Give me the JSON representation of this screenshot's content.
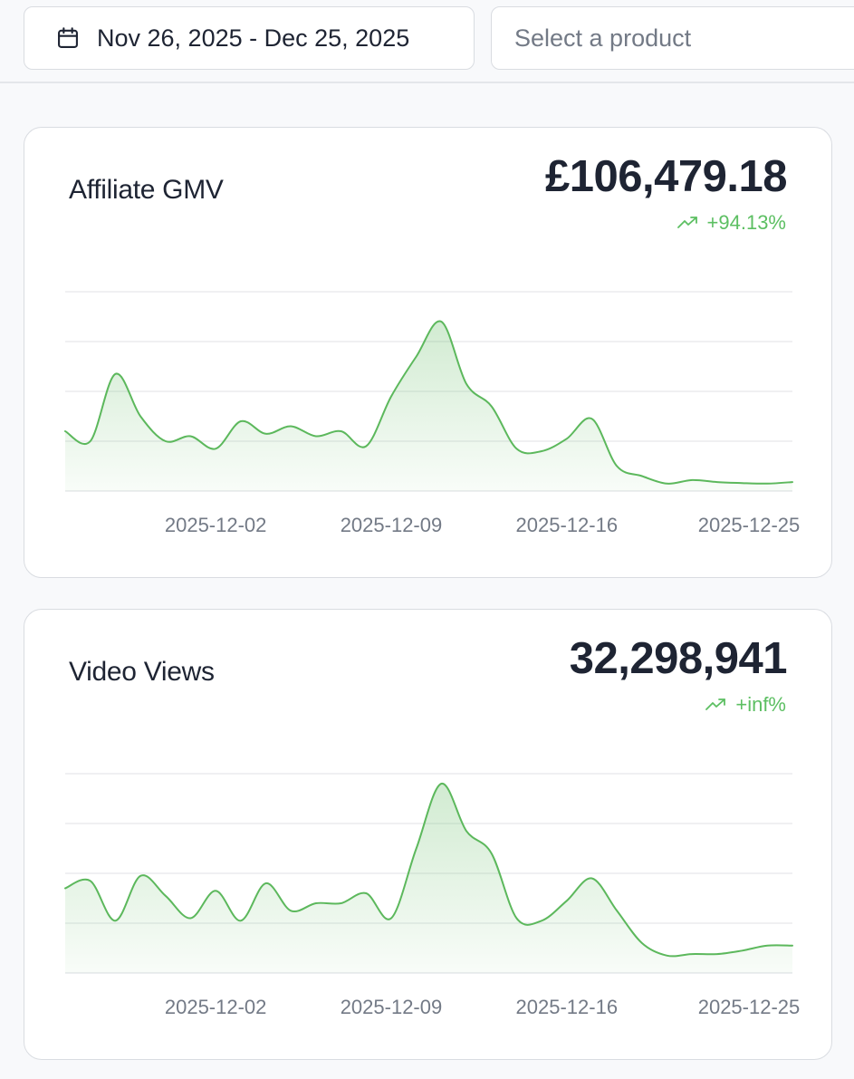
{
  "toolbar": {
    "date_range": "Nov 26, 2025 - Dec 25, 2025",
    "product_placeholder": "Select a product"
  },
  "cards": [
    {
      "title": "Affiliate GMV",
      "value": "£106,479.18",
      "change": "+94.13%"
    },
    {
      "title": "Video Views",
      "value": "32,298,941",
      "change": "+inf%"
    }
  ],
  "colors": {
    "accent_green": "#5cbf62",
    "line_green": "#5cb85c",
    "gridline": "#e6e8eb"
  },
  "chart_data": [
    {
      "type": "area",
      "title": "Affiliate GMV",
      "x_ticks": [
        "2025-12-02",
        "2025-12-09",
        "2025-12-16",
        "2025-12-25"
      ],
      "x_tick_days": [
        6,
        13,
        20,
        29
      ],
      "x_range": [
        0,
        29
      ],
      "ylim": [
        0,
        4
      ],
      "grid": true,
      "x": [
        0,
        1,
        2,
        3,
        4,
        5,
        6,
        7,
        8,
        9,
        10,
        11,
        12,
        13,
        14,
        15,
        16,
        17,
        18,
        19,
        20,
        21,
        22,
        23,
        24,
        25,
        26,
        27,
        28,
        29
      ],
      "values": [
        1.2,
        1.0,
        2.35,
        1.5,
        1.0,
        1.1,
        0.85,
        1.4,
        1.15,
        1.3,
        1.1,
        1.2,
        0.9,
        1.9,
        2.7,
        3.4,
        2.15,
        1.7,
        0.85,
        0.8,
        1.05,
        1.45,
        0.5,
        0.3,
        0.15,
        0.22,
        0.18,
        0.16,
        0.15,
        0.18
      ]
    },
    {
      "type": "area",
      "title": "Video Views",
      "x_ticks": [
        "2025-12-02",
        "2025-12-09",
        "2025-12-16",
        "2025-12-25"
      ],
      "x_tick_days": [
        6,
        13,
        20,
        29
      ],
      "x_range": [
        0,
        29
      ],
      "ylim": [
        0,
        4
      ],
      "grid": true,
      "x": [
        0,
        1,
        2,
        3,
        4,
        5,
        6,
        7,
        8,
        9,
        10,
        11,
        12,
        13,
        14,
        15,
        16,
        17,
        18,
        19,
        20,
        21,
        22,
        23,
        24,
        25,
        26,
        27,
        28,
        29
      ],
      "values": [
        1.7,
        1.85,
        1.05,
        1.95,
        1.55,
        1.1,
        1.65,
        1.05,
        1.8,
        1.25,
        1.4,
        1.4,
        1.6,
        1.1,
        2.5,
        3.8,
        2.85,
        2.4,
        1.1,
        1.05,
        1.45,
        1.9,
        1.25,
        0.6,
        0.35,
        0.38,
        0.38,
        0.45,
        0.55,
        0.55
      ]
    }
  ]
}
